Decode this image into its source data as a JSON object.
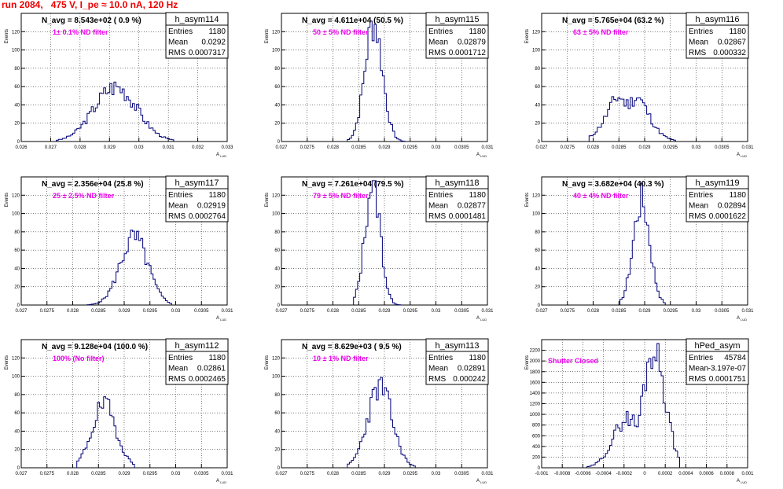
{
  "run_title": "run 2084,   475 V, I_pe ≈ 10.0 nA, 120 Hz",
  "stat_labels": {
    "entries": "Entries",
    "mean": "Mean",
    "rms": "RMS"
  },
  "colors": {
    "histogram": "#00007a",
    "filter_text": "#ee00ee",
    "run_title": "#ee0000"
  },
  "chart_data": [
    {
      "type": "bar",
      "name": "h_asym114",
      "xlabel": "A_LUD",
      "ylabel": "Events",
      "xlim": [
        0.026,
        0.033
      ],
      "xticks": [
        "0.026",
        "0.027",
        "0.028",
        "0.029",
        "0.03",
        "0.031",
        "0.032",
        "0.033"
      ],
      "ylim": [
        0,
        140
      ],
      "yticks": [
        "0",
        "20",
        "40",
        "60",
        "80",
        "100",
        "120"
      ],
      "navg": "N_avg = 8.543e+02 ( 0.9 %)",
      "filter": "1± 0.1% ND filter",
      "stats": {
        "entries": "1180",
        "mean": "0.0292",
        "rms": "0.0007317"
      },
      "grid": true,
      "hist": {
        "center": 0.0292,
        "sigma": 0.00073,
        "peak": 60,
        "lo": 0.0272,
        "hi": 0.0312,
        "dip": 0,
        "seed": 3
      }
    },
    {
      "type": "bar",
      "name": "h_asym115",
      "xlabel": "A_LUD",
      "ylabel": "Events",
      "xlim": [
        0.027,
        0.031
      ],
      "xticks": [
        "0.027",
        "0.0275",
        "0.028",
        "0.0285",
        "0.029",
        "0.0295",
        "0.03",
        "0.0305",
        "0.031"
      ],
      "ylim": [
        0,
        140
      ],
      "yticks": [
        "0",
        "20",
        "40",
        "60",
        "80",
        "100",
        "120"
      ],
      "navg": "N_avg = 4.611e+04 (50.5 %)",
      "filter": "50 ± 5% ND filter",
      "stats": {
        "entries": "1180",
        "mean": "0.02879",
        "rms": "0.0001712"
      },
      "grid": true,
      "hist": {
        "center": 0.02879,
        "sigma": 0.000171,
        "peak": 130,
        "lo": 0.0283,
        "hi": 0.0294,
        "dip": 0,
        "seed": 7
      }
    },
    {
      "type": "bar",
      "name": "h_asym116",
      "xlabel": "A_LUD",
      "ylabel": "Events",
      "xlim": [
        0.027,
        0.031
      ],
      "xticks": [
        "0.027",
        "0.0275",
        "0.028",
        "0.0285",
        "0.029",
        "0.0295",
        "0.03",
        "0.0305",
        "0.031"
      ],
      "ylim": [
        0,
        140
      ],
      "yticks": [
        "0",
        "20",
        "40",
        "60",
        "80",
        "100",
        "120"
      ],
      "navg": "N_avg = 5.765e+04 (63.2 %)",
      "filter": "63 ± 5% ND filter",
      "stats": {
        "entries": "1180",
        "mean": "0.02867",
        "rms": "0.000332"
      },
      "grid": true,
      "hist": {
        "center": 0.02867,
        "sigma": 0.00033,
        "peak": 63,
        "lo": 0.0279,
        "hi": 0.0296,
        "dip": 1,
        "seed": 11
      }
    },
    {
      "type": "bar",
      "name": "h_asym117",
      "xlabel": "A_LUD",
      "ylabel": "Events",
      "xlim": [
        0.027,
        0.031
      ],
      "xticks": [
        "0.027",
        "0.0275",
        "0.028",
        "0.0285",
        "0.029",
        "0.0295",
        "0.03",
        "0.0305",
        "0.031"
      ],
      "ylim": [
        0,
        140
      ],
      "yticks": [
        "0",
        "20",
        "40",
        "60",
        "80",
        "100",
        "120"
      ],
      "navg": "N_avg = 2.356e+04 (25.8 %)",
      "filter": "25 ± 2.5% ND filter",
      "stats": {
        "entries": "1180",
        "mean": "0.02919",
        "rms": "0.0002764"
      },
      "grid": true,
      "hist": {
        "center": 0.02919,
        "sigma": 0.00027,
        "peak": 73,
        "lo": 0.0283,
        "hi": 0.0299,
        "dip": 0,
        "seed": 5
      }
    },
    {
      "type": "bar",
      "name": "h_asym118",
      "xlabel": "A_LUD",
      "ylabel": "Events",
      "xlim": [
        0.027,
        0.031
      ],
      "xticks": [
        "0.027",
        "0.0275",
        "0.028",
        "0.0285",
        "0.029",
        "0.0295",
        "0.03",
        "0.0305",
        "0.031"
      ],
      "ylim": [
        0,
        140
      ],
      "yticks": [
        "0",
        "20",
        "40",
        "60",
        "80",
        "100",
        "120"
      ],
      "navg": "N_avg = 7.261e+04 (79.5 %)",
      "filter": "79 ± 5% ND filter",
      "stats": {
        "entries": "1180",
        "mean": "0.02877",
        "rms": "0.0001481"
      },
      "grid": true,
      "hist": {
        "center": 0.02877,
        "sigma": 0.000148,
        "peak": 135,
        "lo": 0.0284,
        "hi": 0.0293,
        "dip": 0,
        "seed": 13
      }
    },
    {
      "type": "bar",
      "name": "h_asym119",
      "xlabel": "A_LUD",
      "ylabel": "Events",
      "xlim": [
        0.027,
        0.031
      ],
      "xticks": [
        "0.027",
        "0.0275",
        "0.028",
        "0.0285",
        "0.029",
        "0.0295",
        "0.03",
        "0.0305",
        "0.031"
      ],
      "ylim": [
        0,
        140
      ],
      "yticks": [
        "0",
        "20",
        "40",
        "60",
        "80",
        "100",
        "120"
      ],
      "navg": "N_avg = 3.682e+04 (40.3 %)",
      "filter": "40 ± 4% ND filter",
      "stats": {
        "entries": "1180",
        "mean": "0.02894",
        "rms": "0.0001622"
      },
      "grid": true,
      "hist": {
        "center": 0.02894,
        "sigma": 0.000162,
        "peak": 115,
        "lo": 0.0285,
        "hi": 0.0294,
        "dip": 0,
        "seed": 17
      }
    },
    {
      "type": "bar",
      "name": "h_asym112",
      "xlabel": "A_LUD",
      "ylabel": "Events",
      "xlim": [
        0.027,
        0.031
      ],
      "xticks": [
        "0.027",
        "0.0275",
        "0.028",
        "0.0285",
        "0.029",
        "0.0295",
        "0.03",
        "0.0305",
        "0.031"
      ],
      "ylim": [
        0,
        140
      ],
      "yticks": [
        "0",
        "20",
        "40",
        "60",
        "80",
        "100",
        "120"
      ],
      "navg": "N_avg = 9.128e+04 (100.0 %)",
      "filter": "100% (No filter)",
      "stats": {
        "entries": "1180",
        "mean": "0.02861",
        "rms": "0.0002465"
      },
      "grid": true,
      "hist": {
        "center": 0.02861,
        "sigma": 0.00024,
        "peak": 68,
        "lo": 0.0281,
        "hi": 0.0292,
        "dip": 0,
        "seed": 19
      }
    },
    {
      "type": "bar",
      "name": "h_asym113",
      "xlabel": "A_LUD",
      "ylabel": "Events",
      "xlim": [
        0.027,
        0.031
      ],
      "xticks": [
        "0.027",
        "0.0275",
        "0.028",
        "0.0285",
        "0.029",
        "0.0295",
        "0.03",
        "0.0305",
        "0.031"
      ],
      "ylim": [
        0,
        140
      ],
      "yticks": [
        "0",
        "20",
        "40",
        "60",
        "80",
        "100",
        "120"
      ],
      "navg": "N_avg = 8.629e+03 ( 9.5 %)",
      "filter": "10 ± 1% ND filter",
      "stats": {
        "entries": "1180",
        "mean": "0.02891",
        "rms": "0.000242"
      },
      "grid": true,
      "hist": {
        "center": 0.02891,
        "sigma": 0.00024,
        "peak": 88,
        "lo": 0.0283,
        "hi": 0.0296,
        "dip": 0,
        "seed": 23
      }
    },
    {
      "type": "bar",
      "name": "hPed_asym",
      "xlabel": "A_LUD",
      "ylabel": "Events",
      "xlim": [
        -0.001,
        0.001
      ],
      "xticks": [
        "-0.001",
        "-0.0008",
        "-0.0006",
        "-0.0004",
        "-0.0002",
        "0",
        "0.0002",
        "0.0004",
        "0.0006",
        "0.0008",
        "0.001"
      ],
      "ylim": [
        0,
        2400
      ],
      "yticks": [
        "0",
        "200",
        "400",
        "600",
        "800",
        "1000",
        "1200",
        "1400",
        "1600",
        "1800",
        "2000",
        "2200"
      ],
      "navg": "",
      "filter": "Shutter Closed",
      "stats": {
        "entries": "45784",
        "mean": "-3.197e-07",
        "rms": "0.0001751"
      },
      "grid": true,
      "hist": {
        "center": 9e-05,
        "sigma": 0.00011,
        "peak": 2230,
        "lo": -0.00055,
        "hi": 0.00035,
        "dip": 0,
        "shoulder": 1,
        "seed": 29
      }
    }
  ]
}
